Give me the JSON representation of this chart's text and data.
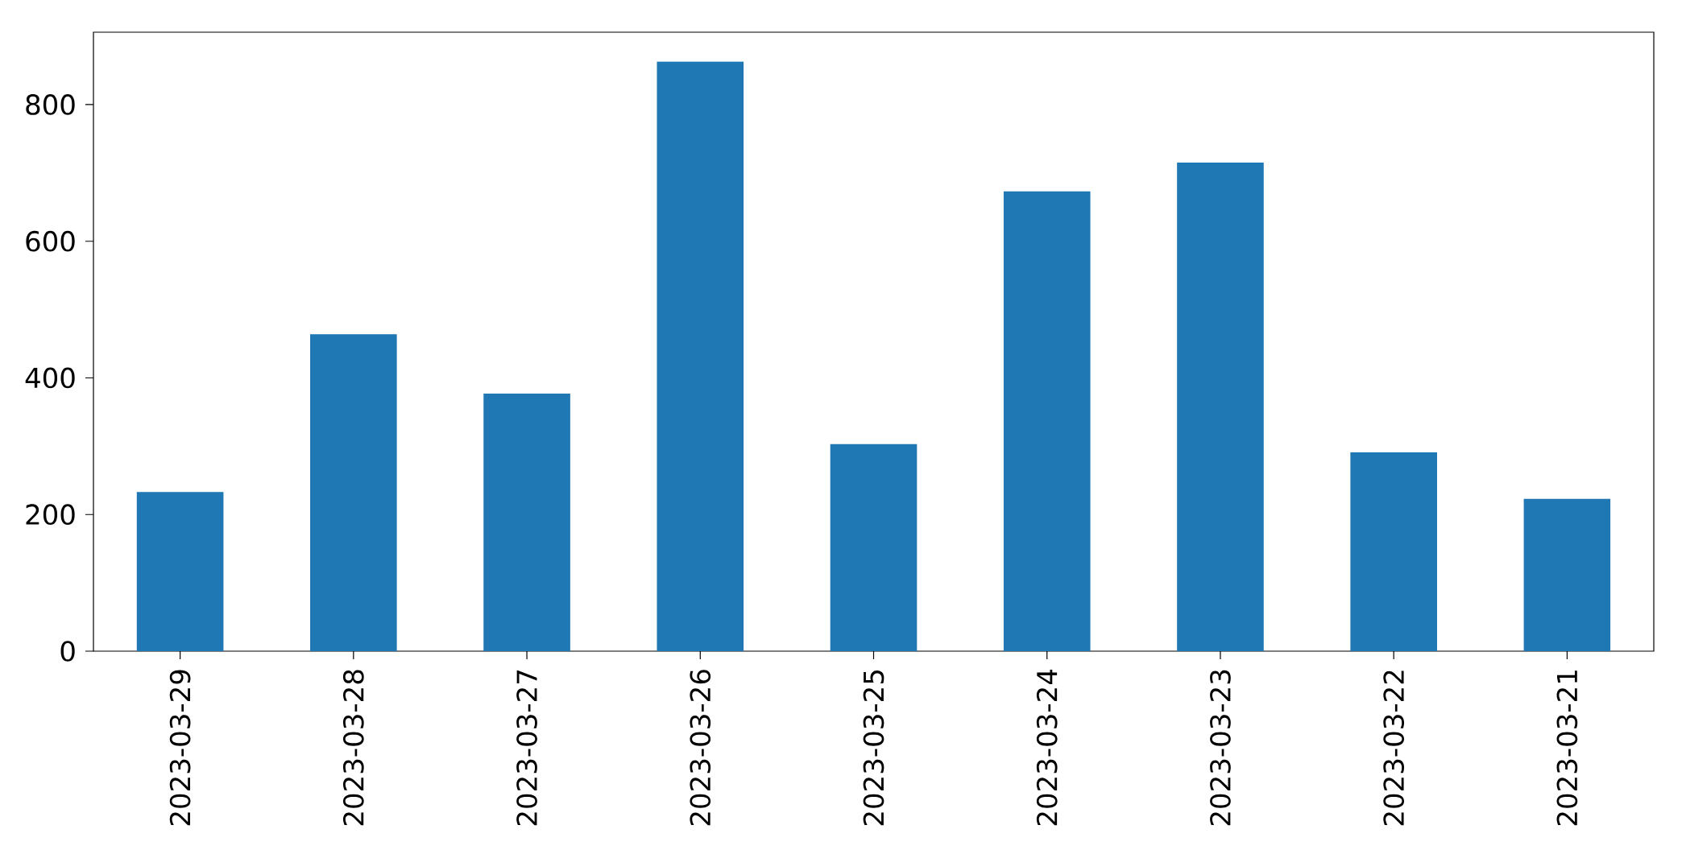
{
  "chart_data": {
    "type": "bar",
    "categories": [
      "2023-03-29",
      "2023-03-28",
      "2023-03-27",
      "2023-03-26",
      "2023-03-25",
      "2023-03-24",
      "2023-03-23",
      "2023-03-22",
      "2023-03-21"
    ],
    "values": [
      233,
      464,
      377,
      863,
      303,
      673,
      715,
      291,
      223
    ],
    "color": "#1f77b4",
    "ylim": [
      0,
      906
    ],
    "yticks": [
      0,
      200,
      400,
      600,
      800
    ]
  }
}
